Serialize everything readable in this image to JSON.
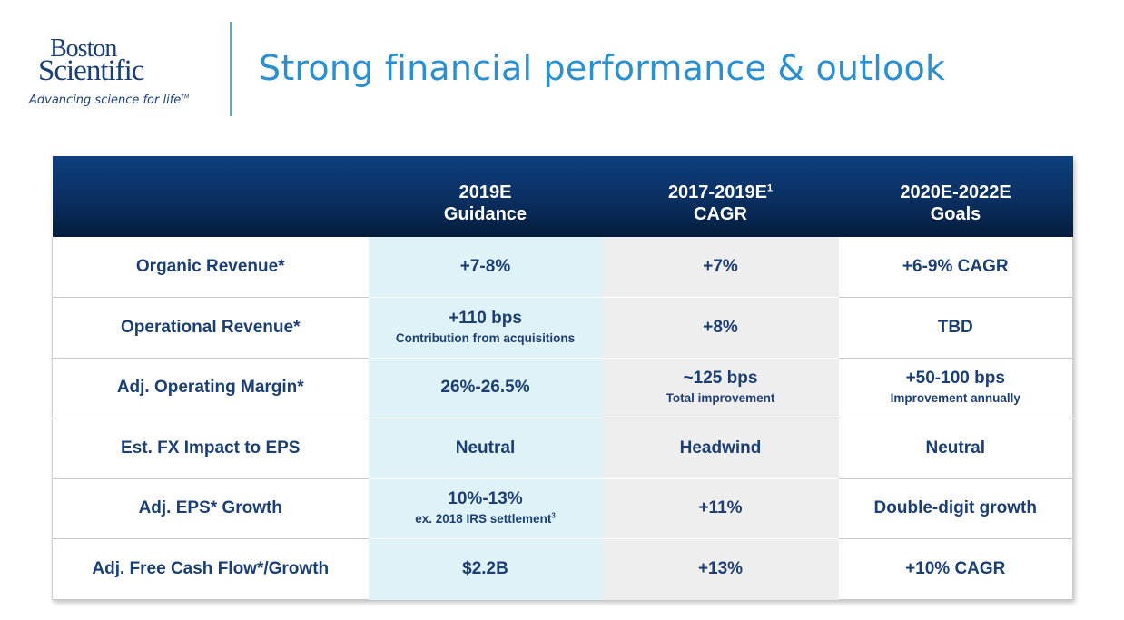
{
  "logo": {
    "line1": "Boston",
    "line2": "Scientific",
    "tagline": "Advancing science for life",
    "tagline_mark": "TM"
  },
  "title": "Strong financial performance & outlook",
  "colors": {
    "title_blue": "#2b8fd0",
    "navy_text": "#1b3f73",
    "header_navy": "#0a2f60",
    "guidance_bg": "#dff2f7",
    "cagr_bg": "#eeeeee"
  },
  "table": {
    "headers": [
      {
        "line1": "",
        "line2": "",
        "sup": ""
      },
      {
        "line1": "2019E",
        "line2": "Guidance",
        "sup": ""
      },
      {
        "line1": "2017-2019E",
        "line2": "CAGR",
        "sup": "1"
      },
      {
        "line1": "2020E-2022E",
        "line2": "Goals",
        "sup": ""
      }
    ],
    "rows": [
      {
        "label": "Organic Revenue*",
        "guidance": {
          "main": "+7-8%",
          "sub": "",
          "sup": ""
        },
        "cagr": {
          "main": "+7%",
          "sub": ""
        },
        "goals": {
          "main": "+6-9% CAGR",
          "sub": ""
        }
      },
      {
        "label": "Operational Revenue*",
        "guidance": {
          "main": "+110 bps",
          "sub": "Contribution from acquisitions",
          "sup": ""
        },
        "cagr": {
          "main": "+8%",
          "sub": ""
        },
        "goals": {
          "main": "TBD",
          "sub": ""
        }
      },
      {
        "label": "Adj. Operating Margin*",
        "guidance": {
          "main": "26%-26.5%",
          "sub": "",
          "sup": ""
        },
        "cagr": {
          "main": "~125 bps",
          "sub": "Total improvement"
        },
        "goals": {
          "main": "+50-100 bps",
          "sub": "Improvement annually"
        }
      },
      {
        "label": "Est. FX Impact to EPS",
        "guidance": {
          "main": "Neutral",
          "sub": "",
          "sup": ""
        },
        "cagr": {
          "main": "Headwind",
          "sub": ""
        },
        "goals": {
          "main": "Neutral",
          "sub": ""
        }
      },
      {
        "label": "Adj. EPS* Growth",
        "guidance": {
          "main": "10%-13%",
          "sub": "ex. 2018 IRS settlement",
          "sup": "3"
        },
        "cagr": {
          "main": "+11%",
          "sub": ""
        },
        "goals": {
          "main": "Double-digit growth",
          "sub": ""
        }
      },
      {
        "label": "Adj. Free Cash Flow*/Growth",
        "guidance": {
          "main": "$2.2B",
          "sub": "",
          "sup": ""
        },
        "cagr": {
          "main": "+13%",
          "sub": ""
        },
        "goals": {
          "main": "+10% CAGR",
          "sub": ""
        }
      }
    ]
  }
}
